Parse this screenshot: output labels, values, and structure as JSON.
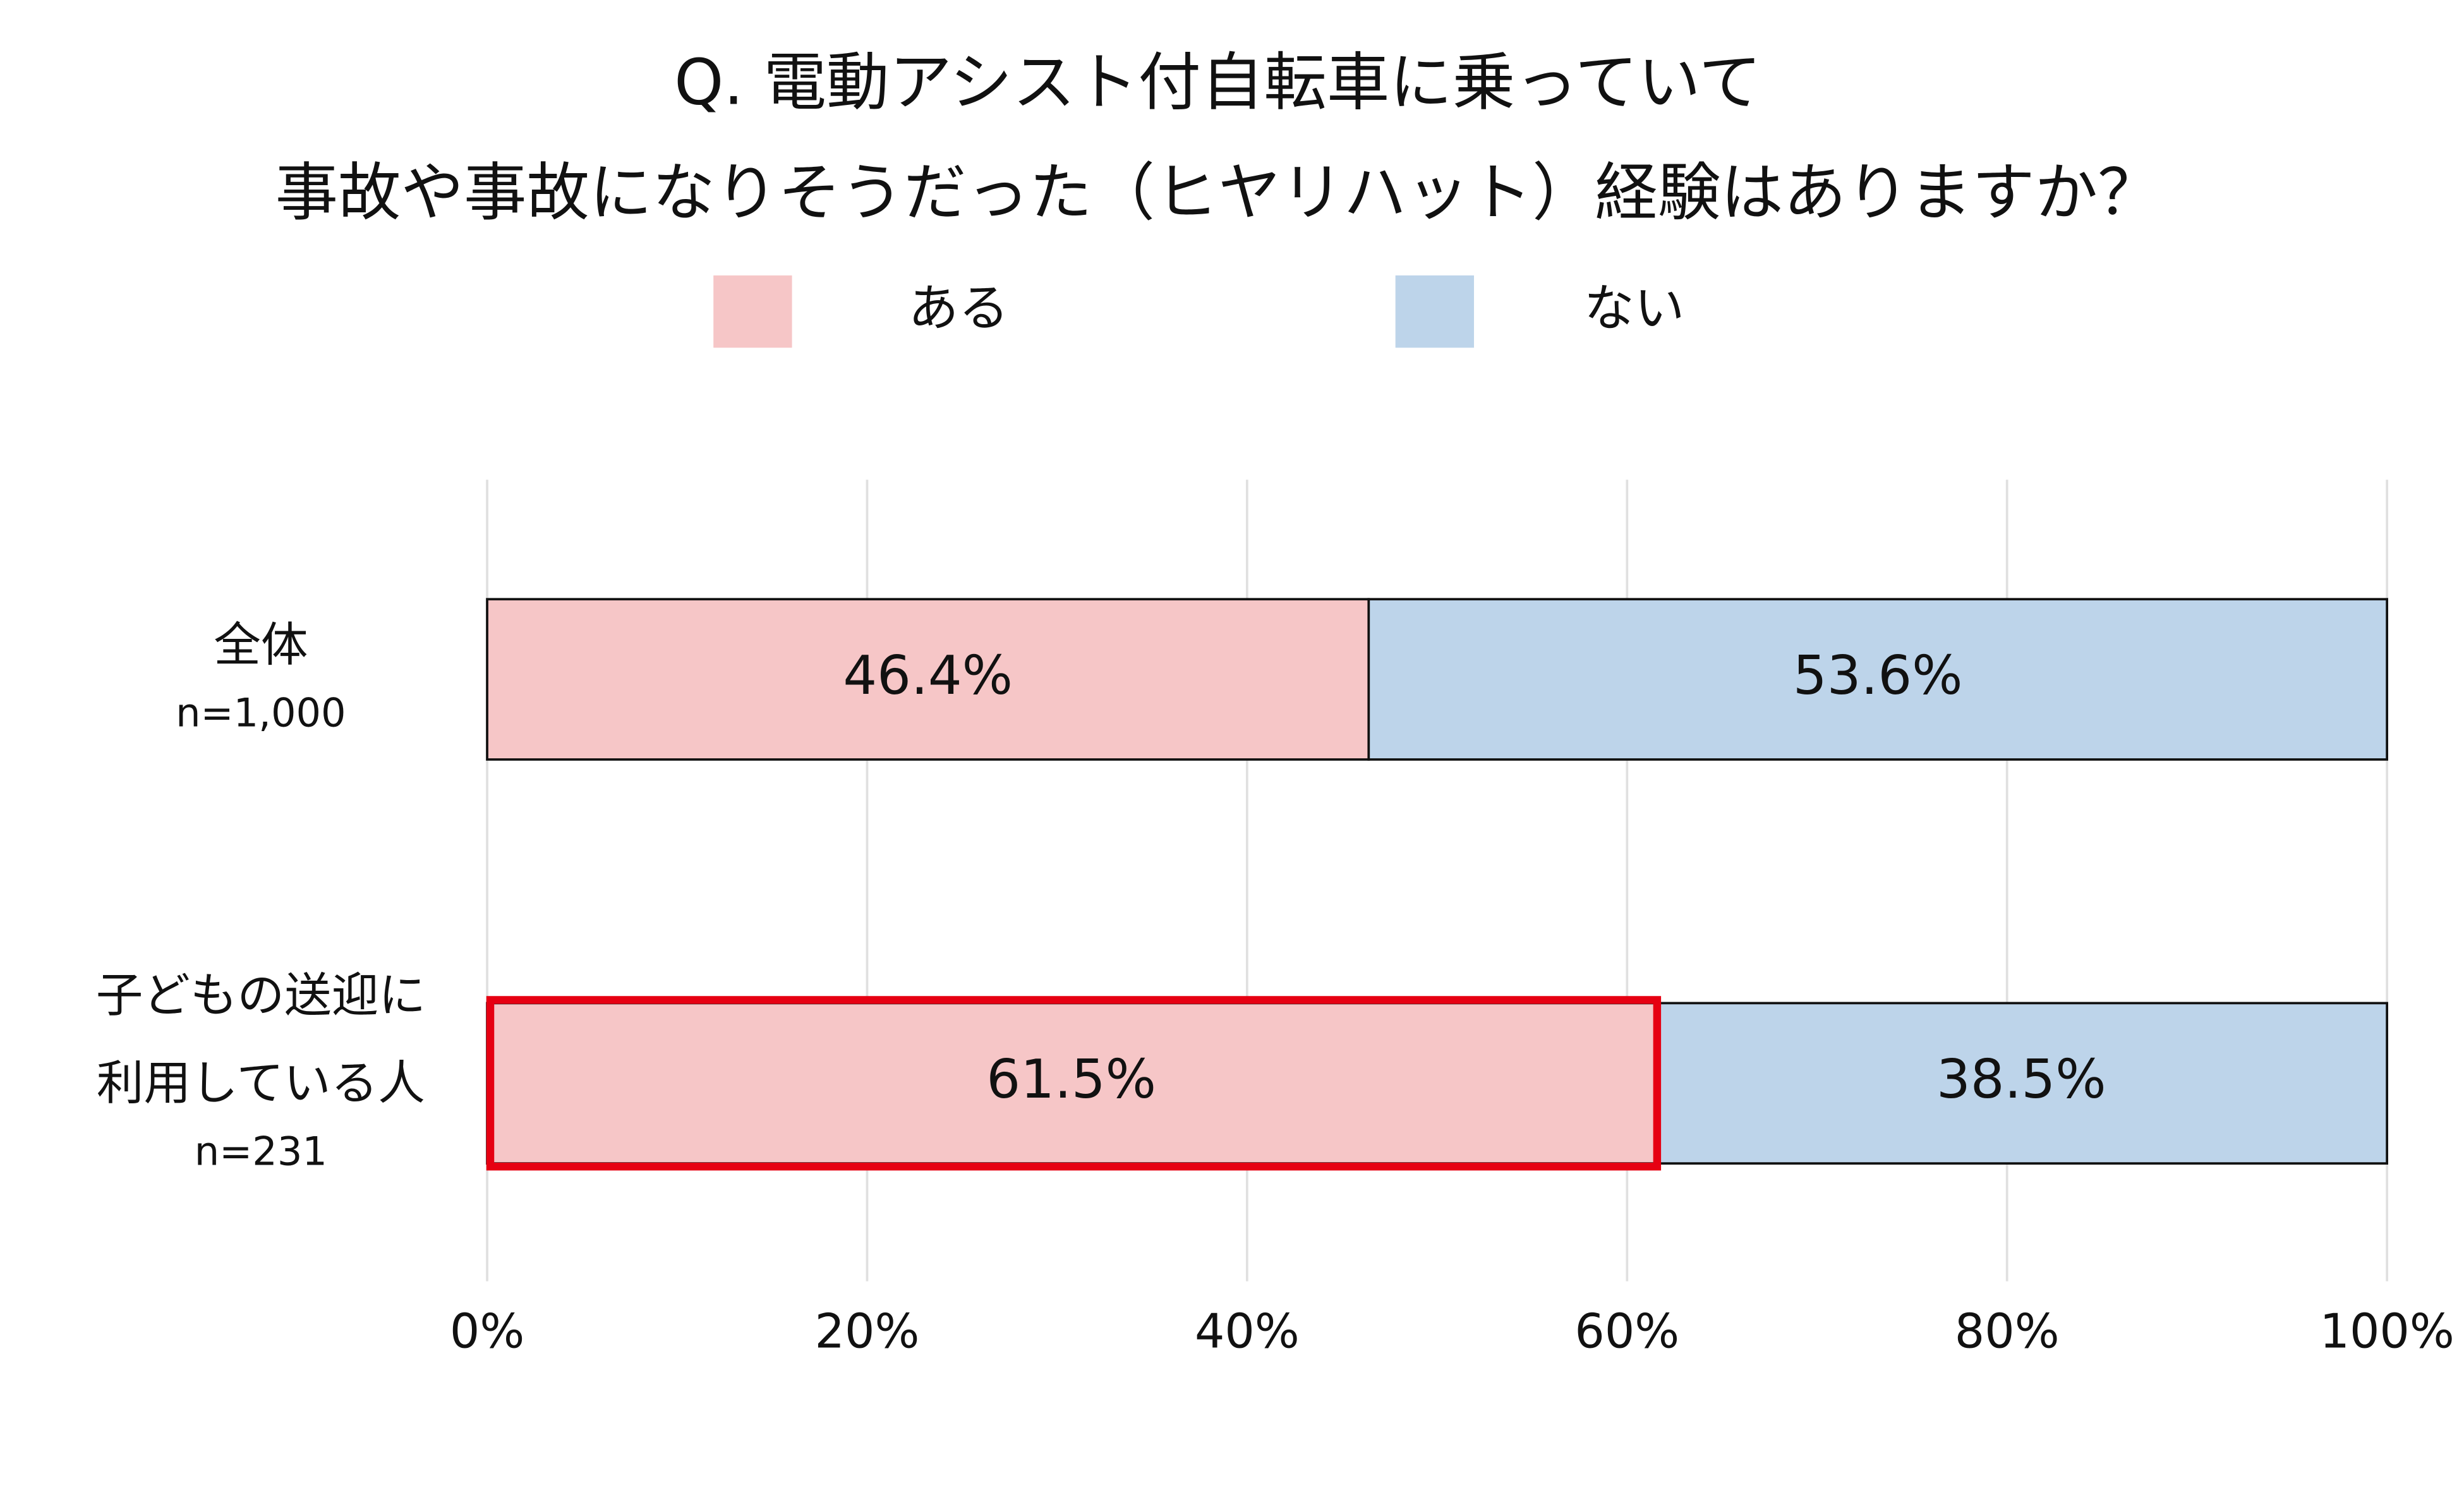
{
  "chart_data": {
    "type": "stacked-horizontal-bar",
    "title": [
      "Q. 電動アシスト付自転車に乗っていて",
      "事故や事故になりそうだった（ヒヤリハット）経験はありますか？"
    ],
    "categories": [
      [
        "全体"
      ],
      [
        "子どもの送迎に",
        "利用している人"
      ]
    ],
    "sample_sizes": [
      "n=1,000",
      "n=231"
    ],
    "series": [
      {
        "name": "ある",
        "color": "#f6c6c7",
        "values": [
          46.4,
          61.5
        ],
        "value_labels": [
          "46.4%",
          "61.5%"
        ]
      },
      {
        "name": "ない",
        "color": "#bdd4ea",
        "values": [
          53.6,
          38.5
        ],
        "value_labels": [
          "53.6%",
          "38.5%"
        ]
      }
    ],
    "xlim": [
      0,
      100
    ],
    "xticks": [
      {
        "value": 0,
        "label": "0%"
      },
      {
        "value": 20,
        "label": "20%"
      },
      {
        "value": 40,
        "label": "40%"
      },
      {
        "value": 60,
        "label": "60%"
      },
      {
        "value": 80,
        "label": "80%"
      },
      {
        "value": 100,
        "label": "100%"
      }
    ],
    "grid": true,
    "legend": "top",
    "highlight": {
      "series": 0,
      "index": 1,
      "color": "#e60012"
    }
  }
}
